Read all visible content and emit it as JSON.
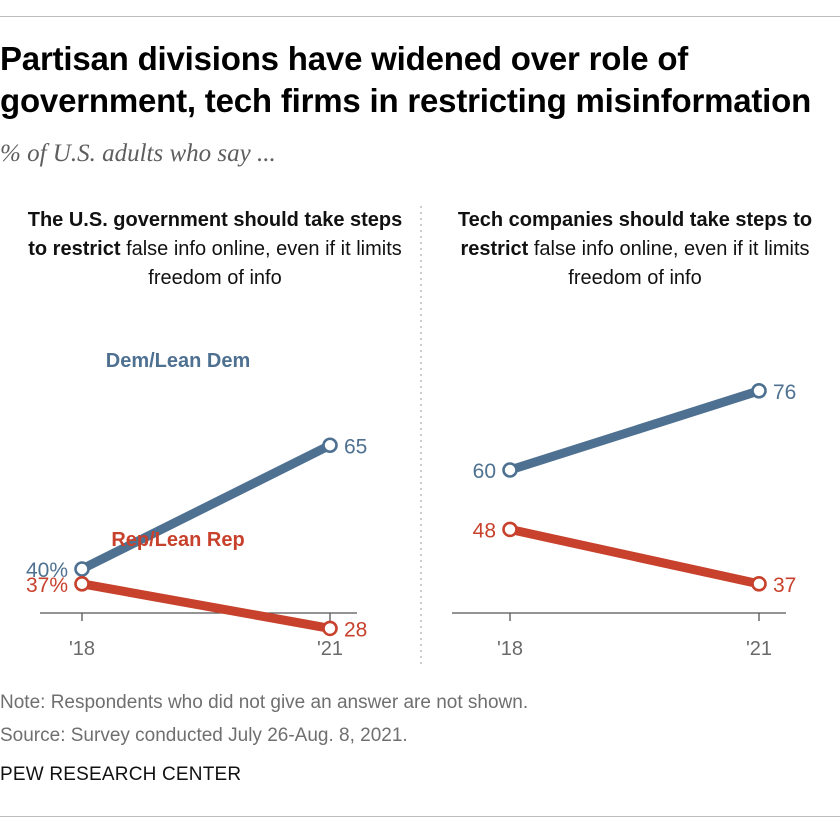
{
  "title_line1": "Partisan divisions have widened over role of",
  "title_line2": "government, tech firms in restricting misinformation",
  "subtitle": "% of U.S. adults who say ...",
  "note": "Note: Respondents who did not give an answer are not shown.",
  "source": "Source: Survey conducted July 26-Aug. 8, 2021.",
  "footer": "PEW RESEARCH CENTER",
  "colors": {
    "dem": "#4f7191",
    "rep": "#c8412c",
    "axis": "#555555"
  },
  "chart_data": [
    {
      "type": "line",
      "heading_bold": "The U.S. government should take steps to restrict",
      "heading_rest": "false info online, even if it limits freedom of info",
      "x": [
        "'18",
        "'21"
      ],
      "ylim": [
        0,
        100
      ],
      "series": [
        {
          "name": "Dem/Lean Dem",
          "key": "dem",
          "values": [
            40,
            65
          ],
          "labels": [
            "40%",
            "65"
          ]
        },
        {
          "name": "Rep/Lean Rep",
          "key": "rep",
          "values": [
            37,
            28
          ],
          "labels": [
            "37%",
            "28"
          ]
        }
      ]
    },
    {
      "type": "line",
      "heading_bold": "Tech companies should take steps to restrict",
      "heading_rest": "false info online, even if it limits freedom of info",
      "x": [
        "'18",
        "'21"
      ],
      "ylim": [
        0,
        100
      ],
      "series": [
        {
          "key": "dem",
          "values": [
            60,
            76
          ],
          "labels": [
            "60",
            "76"
          ]
        },
        {
          "key": "rep",
          "values": [
            48,
            37
          ],
          "labels": [
            "48",
            "37"
          ]
        }
      ]
    }
  ]
}
